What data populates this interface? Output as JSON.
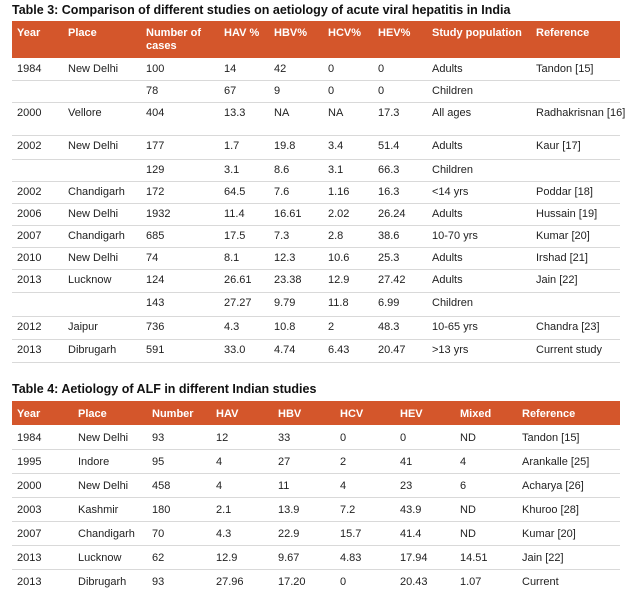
{
  "table3": {
    "caption": "Table 3: Comparison of different studies on aetiology of acute viral hepatitis in India",
    "headers": [
      "Year",
      "Place",
      "Number of cases",
      "HAV %",
      "HBV%",
      "HCV%",
      "HEV%",
      "Study population",
      "Reference"
    ],
    "header_number_line1": "Number of",
    "header_number_line2": "cases",
    "rows": [
      [
        "1984",
        "New Delhi",
        "100",
        "14",
        "42",
        "0",
        "0",
        "Adults",
        "Tandon [15]"
      ],
      [
        "",
        "",
        "78",
        "67",
        "9",
        "0",
        "0",
        "Children",
        ""
      ],
      [
        "2000",
        "Vellore",
        "404",
        "13.3",
        "NA",
        "NA",
        "17.3",
        "All ages",
        "Radhakrisnan [16]"
      ],
      [
        "2002",
        "New Delhi",
        "177",
        "1.7",
        "19.8",
        "3.4",
        "51.4",
        "Adults",
        "Kaur [17]"
      ],
      [
        "",
        "",
        "129",
        "3.1",
        "8.6",
        "3.1",
        "66.3",
        "Children",
        ""
      ],
      [
        "2002",
        "Chandigarh",
        "172",
        "64.5",
        "7.6",
        "1.16",
        "16.3",
        "<14 yrs",
        "Poddar [18]"
      ],
      [
        "2006",
        "New Delhi",
        "1932",
        "11.4",
        "16.61",
        "2.02",
        "26.24",
        "Adults",
        "Hussain [19]"
      ],
      [
        "2007",
        "Chandigarh",
        "685",
        "17.5",
        "7.3",
        "2.8",
        "38.6",
        "10-70 yrs",
        "Kumar [20]"
      ],
      [
        "2010",
        "New Delhi",
        "74",
        "8.1",
        "12.3",
        "10.6",
        "25.3",
        "Adults",
        "Irshad [21]"
      ],
      [
        "2013",
        "Lucknow",
        "124",
        "26.61",
        "23.38",
        "12.9",
        "27.42",
        "Adults",
        "Jain [22]"
      ],
      [
        "",
        "",
        "143",
        "27.27",
        "9.79",
        "11.8",
        "6.99",
        "Children",
        ""
      ],
      [
        "2012",
        "Jaipur",
        "736",
        "4.3",
        "10.8",
        "2",
        "48.3",
        "10-65 yrs",
        "Chandra [23]"
      ],
      [
        "2013",
        "Dibrugarh",
        "591",
        "33.0",
        "4.74",
        "6.43",
        "20.47",
        ">13 yrs",
        "Current study"
      ]
    ]
  },
  "table4": {
    "caption": "Table 4: Aetiology of ALF in different Indian studies",
    "headers": [
      "Year",
      "Place",
      "Number",
      "HAV",
      "HBV",
      "HCV",
      "HEV",
      "Mixed",
      "Reference"
    ],
    "rows": [
      [
        "1984",
        "New Delhi",
        "93",
        "12",
        "33",
        "0",
        "0",
        "ND",
        "Tandon [15]"
      ],
      [
        "1995",
        "Indore",
        "95",
        "4",
        "27",
        "2",
        "41",
        "4",
        "Arankalle [25]"
      ],
      [
        "2000",
        "New Delhi",
        "458",
        "4",
        "11",
        "4",
        "23",
        "6",
        "Acharya [26]"
      ],
      [
        "2003",
        "Kashmir",
        "180",
        "2.1",
        "13.9",
        "7.2",
        "43.9",
        "ND",
        "Khuroo [28]"
      ],
      [
        "2007",
        "Chandigarh",
        "70",
        "4.3",
        "22.9",
        "15.7",
        "41.4",
        "ND",
        "Kumar [20]"
      ],
      [
        "2013",
        "Lucknow",
        "62",
        "12.9",
        "9.67",
        "4.83",
        "17.94",
        "14.51",
        "Jain [22]"
      ],
      [
        "2013",
        "Dibrugarh",
        "93",
        "27.96",
        "17.20",
        "0",
        "20.43",
        "1.07",
        "Current"
      ]
    ]
  },
  "colors": {
    "header_bg": "#d4562b",
    "header_text": "#ffffff",
    "row_line": "#d9d9d9"
  }
}
